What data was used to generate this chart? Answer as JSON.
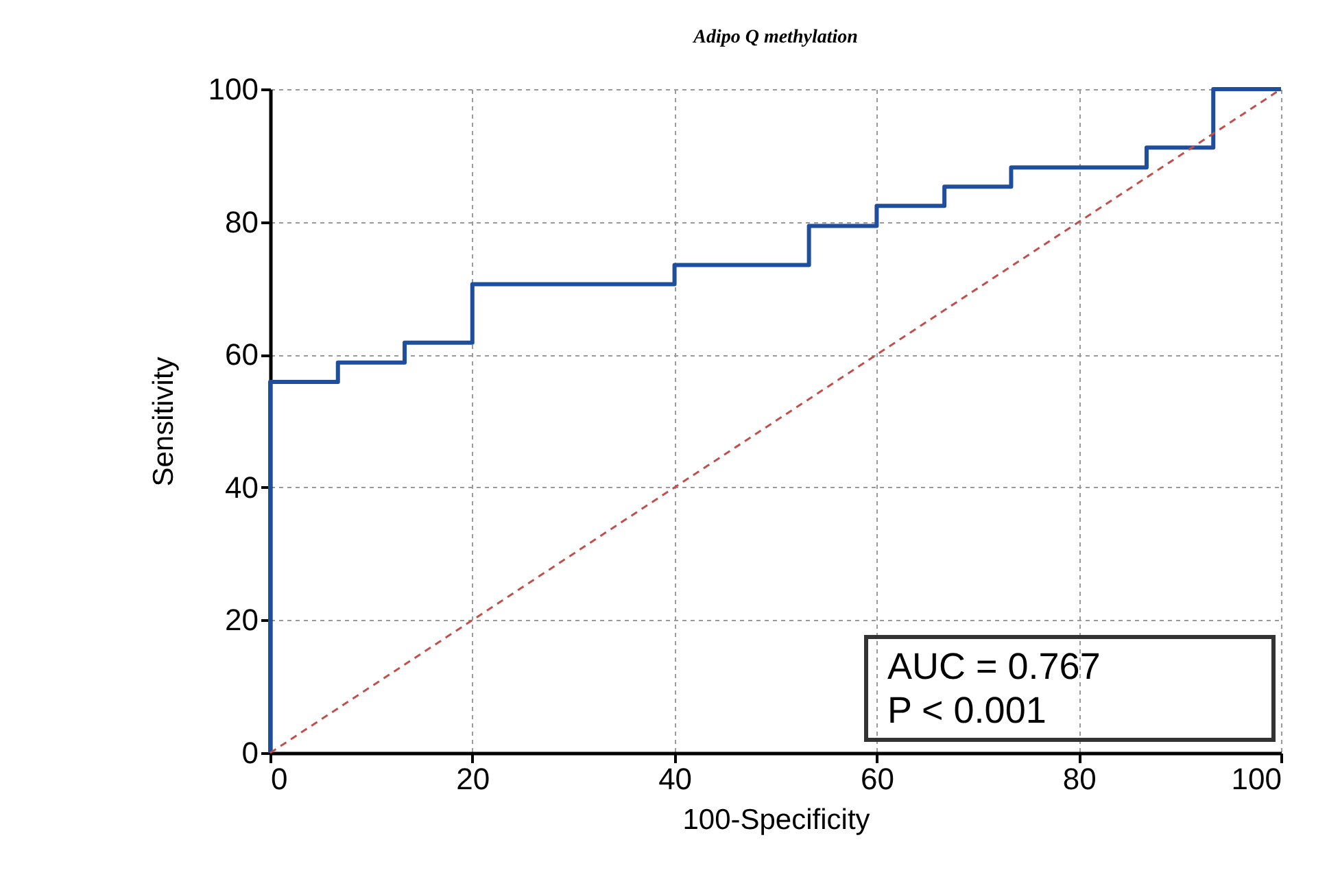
{
  "chart_data": {
    "type": "step",
    "title": "Adipo Q methylation",
    "xlabel": "100-Specificity",
    "ylabel": "Sensitivity",
    "annotations": [
      "AUC = 0.767",
      "P < 0.001"
    ],
    "series": [
      {
        "color": "#1f4e9c",
        "x": [
          0,
          0,
          6.7,
          13.3,
          20,
          40,
          53.3,
          60,
          66.7,
          73.3,
          86.7,
          93.3,
          100
        ],
        "values": [
          0,
          55.9,
          58.8,
          61.8,
          70.6,
          73.5,
          79.4,
          82.4,
          85.3,
          88.2,
          91.2,
          100,
          100
        ]
      },
      {
        "type": "line",
        "color": "#c0504d",
        "line_style": "dashed",
        "x": [
          0,
          100
        ],
        "values": [
          0,
          100
        ]
      }
    ],
    "xlim": [
      0,
      100
    ],
    "xticks": [
      0,
      20,
      40,
      60,
      80,
      100
    ],
    "ylim": [
      0,
      100
    ],
    "yticks": [
      0,
      20,
      40,
      60,
      80,
      100
    ],
    "grid": true
  }
}
